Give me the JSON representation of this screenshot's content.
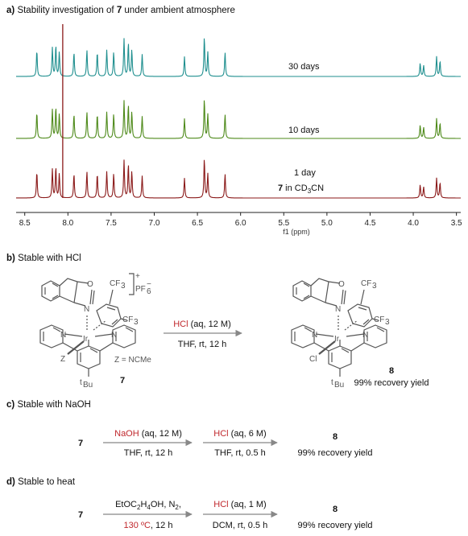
{
  "section_a": {
    "letter": "a)",
    "title_pre": "Stability investigation of ",
    "title_compound": "7",
    "title_post": " under ambient atmosphere"
  },
  "spectra": {
    "labels": [
      "30 days",
      "10 days",
      "1 day"
    ],
    "sample_compound": "7",
    "sample_text": " in CD",
    "sample_sub": "3",
    "sample_tail": "CN",
    "colors": [
      "#1f8f8f",
      "#4e8a1a",
      "#8b1a1a"
    ]
  },
  "chart_data": {
    "type": "line",
    "xlabel": "f1 (ppm)",
    "xlim": [
      8.6,
      3.45
    ],
    "x_reversed": true,
    "ticks": [
      "8.5",
      "8.0",
      "7.5",
      "7.0",
      "6.5",
      "6.0",
      "5.5",
      "5.0",
      "4.5",
      "4.0",
      "3.5"
    ],
    "tick_values": [
      8.5,
      8.0,
      7.5,
      7.0,
      6.5,
      6.0,
      5.5,
      5.0,
      4.5,
      4.0,
      3.5
    ],
    "series": [
      {
        "name": "30 days",
        "peaks": [
          [
            8.36,
            0.6
          ],
          [
            8.18,
            0.65
          ],
          [
            8.14,
            0.7
          ],
          [
            8.1,
            0.55
          ],
          [
            7.93,
            0.55
          ],
          [
            7.78,
            0.6
          ],
          [
            7.66,
            0.55
          ],
          [
            7.55,
            0.6
          ],
          [
            7.47,
            0.55
          ],
          [
            7.35,
            0.85
          ],
          [
            7.3,
            0.75
          ],
          [
            7.26,
            0.6
          ],
          [
            7.14,
            0.5
          ],
          [
            6.65,
            0.45
          ],
          [
            6.42,
            0.9
          ],
          [
            6.38,
            0.55
          ],
          [
            6.18,
            0.55
          ],
          [
            3.92,
            0.3
          ],
          [
            3.88,
            0.25
          ],
          [
            3.73,
            0.45
          ],
          [
            3.69,
            0.35
          ]
        ]
      },
      {
        "name": "10 days",
        "peaks": [
          [
            8.36,
            0.6
          ],
          [
            8.18,
            0.65
          ],
          [
            8.14,
            0.7
          ],
          [
            8.1,
            0.55
          ],
          [
            7.93,
            0.55
          ],
          [
            7.78,
            0.6
          ],
          [
            7.66,
            0.55
          ],
          [
            7.55,
            0.6
          ],
          [
            7.47,
            0.55
          ],
          [
            7.35,
            0.85
          ],
          [
            7.3,
            0.75
          ],
          [
            7.26,
            0.6
          ],
          [
            7.14,
            0.5
          ],
          [
            6.65,
            0.45
          ],
          [
            6.42,
            0.9
          ],
          [
            6.38,
            0.55
          ],
          [
            6.18,
            0.55
          ],
          [
            3.92,
            0.3
          ],
          [
            3.88,
            0.25
          ],
          [
            3.73,
            0.45
          ],
          [
            3.69,
            0.35
          ]
        ]
      },
      {
        "name": "1 day",
        "peaks": [
          [
            8.36,
            0.6
          ],
          [
            8.18,
            0.65
          ],
          [
            8.14,
            0.7
          ],
          [
            8.1,
            0.55
          ],
          [
            7.93,
            0.55
          ],
          [
            7.78,
            0.6
          ],
          [
            7.66,
            0.55
          ],
          [
            7.55,
            0.6
          ],
          [
            7.47,
            0.55
          ],
          [
            7.35,
            0.85
          ],
          [
            7.3,
            0.75
          ],
          [
            7.26,
            0.6
          ],
          [
            7.14,
            0.5
          ],
          [
            6.65,
            0.45
          ],
          [
            6.42,
            0.9
          ],
          [
            6.38,
            0.55
          ],
          [
            6.18,
            0.55
          ],
          [
            3.92,
            0.3
          ],
          [
            3.88,
            0.25
          ],
          [
            3.73,
            0.45
          ],
          [
            3.69,
            0.35
          ]
        ]
      }
    ],
    "solvent_peak": 8.06
  },
  "section_b": {
    "letter": "b)",
    "title": "Stable with HCl",
    "left_mol": {
      "cf3_a": "CF",
      "cf3_b": "CF",
      "sub3": "3",
      "counterion": "PF",
      "pf_sub": "6",
      "charge": "+",
      "minus": "−",
      "O": "O",
      "N1": "N",
      "Ir": "Ir",
      "N2": "N",
      "Z": "Z",
      "z_def": "Z = NCMe",
      "tbu_sup": "t",
      "tbu": "Bu",
      "label": "7"
    },
    "arrow_top_red": "HCl",
    "arrow_top_rest": " (aq, 12 M)",
    "arrow_bottom": "THF, rt, 12 h",
    "right_mol": {
      "cf3_a": "CF",
      "cf3_b": "CF",
      "sub3": "3",
      "O": "O",
      "N1": "N",
      "Ir": "Ir",
      "N2": "N",
      "Cl": "Cl",
      "tbu_sup": "t",
      "tbu": "Bu",
      "label": "8",
      "recovery": "99% recovery yield"
    }
  },
  "section_c": {
    "letter": "c)",
    "title": "Stable with NaOH",
    "start": "7",
    "a1_top_red": "NaOH",
    "a1_top_rest": " (aq, 12 M)",
    "a1_bottom": "THF, rt, 12 h",
    "a2_top_red": "HCl",
    "a2_top_rest": " (aq, 6 M)",
    "a2_bottom": "THF, rt, 0.5 h",
    "product": "8",
    "recovery": "99% recovery yield"
  },
  "section_d": {
    "letter": "d)",
    "title": "Stable to heat",
    "start": "7",
    "a1_top": "EtOC",
    "a1_top_sub": "2",
    "a1_top_mid": "H",
    "a1_top_sub2": "4",
    "a1_top_tail": "OH, N",
    "a1_top_sub3": "2",
    "a1_top_end": ",",
    "a1_bottom_red": "130 ºC",
    "a1_bottom_rest": ", 12 h",
    "a2_top_red": "HCl",
    "a2_top_rest": " (aq, 1 M)",
    "a2_bottom": "DCM, rt, 0.5 h",
    "product": "8",
    "recovery": "99% recovery yield"
  }
}
